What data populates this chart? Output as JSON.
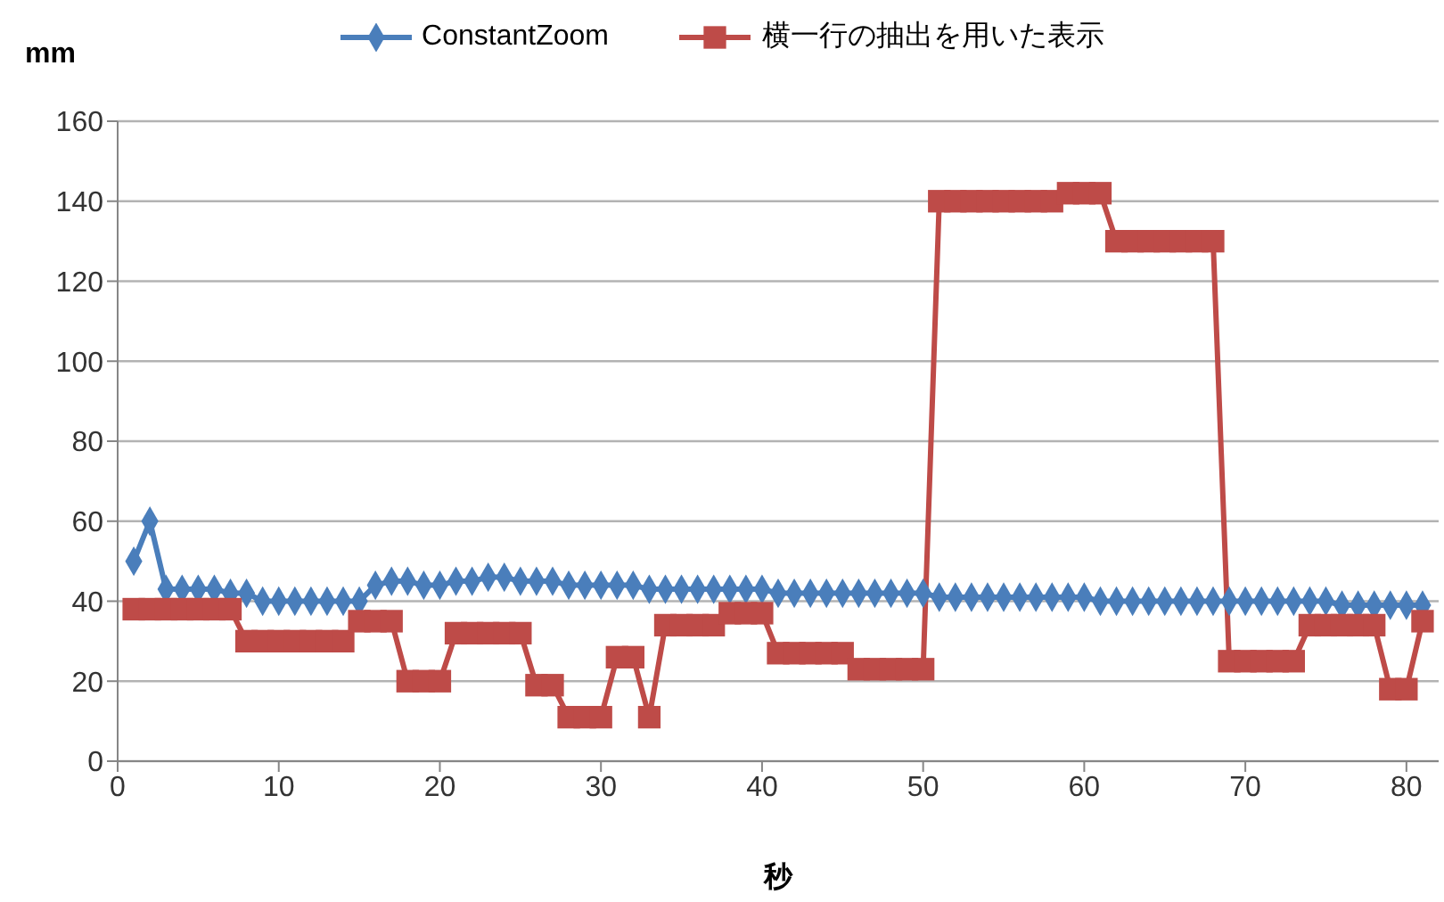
{
  "chart_data": {
    "type": "line",
    "ylabel": "mm",
    "xlabel": "秒",
    "xlim": [
      0,
      82
    ],
    "xticks": [
      0,
      10,
      20,
      30,
      40,
      50,
      60,
      70,
      80
    ],
    "ylim": [
      0,
      160
    ],
    "yticks": [
      0,
      20,
      40,
      60,
      80,
      100,
      120,
      140,
      160
    ],
    "grid": "y",
    "legend": "top",
    "x": [
      1,
      2,
      3,
      4,
      5,
      6,
      7,
      8,
      9,
      10,
      11,
      12,
      13,
      14,
      15,
      16,
      17,
      18,
      19,
      20,
      21,
      22,
      23,
      24,
      25,
      26,
      27,
      28,
      29,
      30,
      31,
      32,
      33,
      34,
      35,
      36,
      37,
      38,
      39,
      40,
      41,
      42,
      43,
      44,
      45,
      46,
      47,
      48,
      49,
      50,
      51,
      52,
      53,
      54,
      55,
      56,
      57,
      58,
      59,
      60,
      61,
      62,
      63,
      64,
      65,
      66,
      67,
      68,
      69,
      70,
      71,
      72,
      73,
      74,
      75,
      76,
      77,
      78,
      79,
      80,
      81
    ],
    "series": [
      {
        "name": "ConstantZoom",
        "color": "#4a7ebb",
        "marker": "diamond",
        "values": [
          50,
          60,
          43,
          43,
          43,
          43,
          42,
          42,
          40,
          40,
          40,
          40,
          40,
          40,
          40,
          44,
          45,
          45,
          44,
          44,
          45,
          45,
          46,
          46,
          45,
          45,
          45,
          44,
          44,
          44,
          44,
          44,
          43,
          43,
          43,
          43,
          43,
          43,
          43,
          43,
          42,
          42,
          42,
          42,
          42,
          42,
          42,
          42,
          42,
          42,
          41,
          41,
          41,
          41,
          41,
          41,
          41,
          41,
          41,
          41,
          40,
          40,
          40,
          40,
          40,
          40,
          40,
          40,
          40,
          40,
          40,
          40,
          40,
          40,
          40,
          39,
          39,
          39,
          39,
          39,
          39
        ]
      },
      {
        "name": "横一行の抽出を用いた表示",
        "color": "#be4b48",
        "marker": "square",
        "values": [
          38,
          38,
          38,
          38,
          38,
          38,
          38,
          30,
          30,
          30,
          30,
          30,
          30,
          30,
          35,
          35,
          35,
          20,
          20,
          20,
          32,
          32,
          32,
          32,
          32,
          19,
          19,
          11,
          11,
          11,
          26,
          26,
          11,
          34,
          34,
          34,
          34,
          37,
          37,
          37,
          27,
          27,
          27,
          27,
          27,
          23,
          23,
          23,
          23,
          23,
          140,
          140,
          140,
          140,
          140,
          140,
          140,
          140,
          142,
          142,
          142,
          130,
          130,
          130,
          130,
          130,
          130,
          130,
          25,
          25,
          25,
          25,
          25,
          34,
          34,
          34,
          34,
          34,
          18,
          18,
          35
        ]
      }
    ]
  }
}
